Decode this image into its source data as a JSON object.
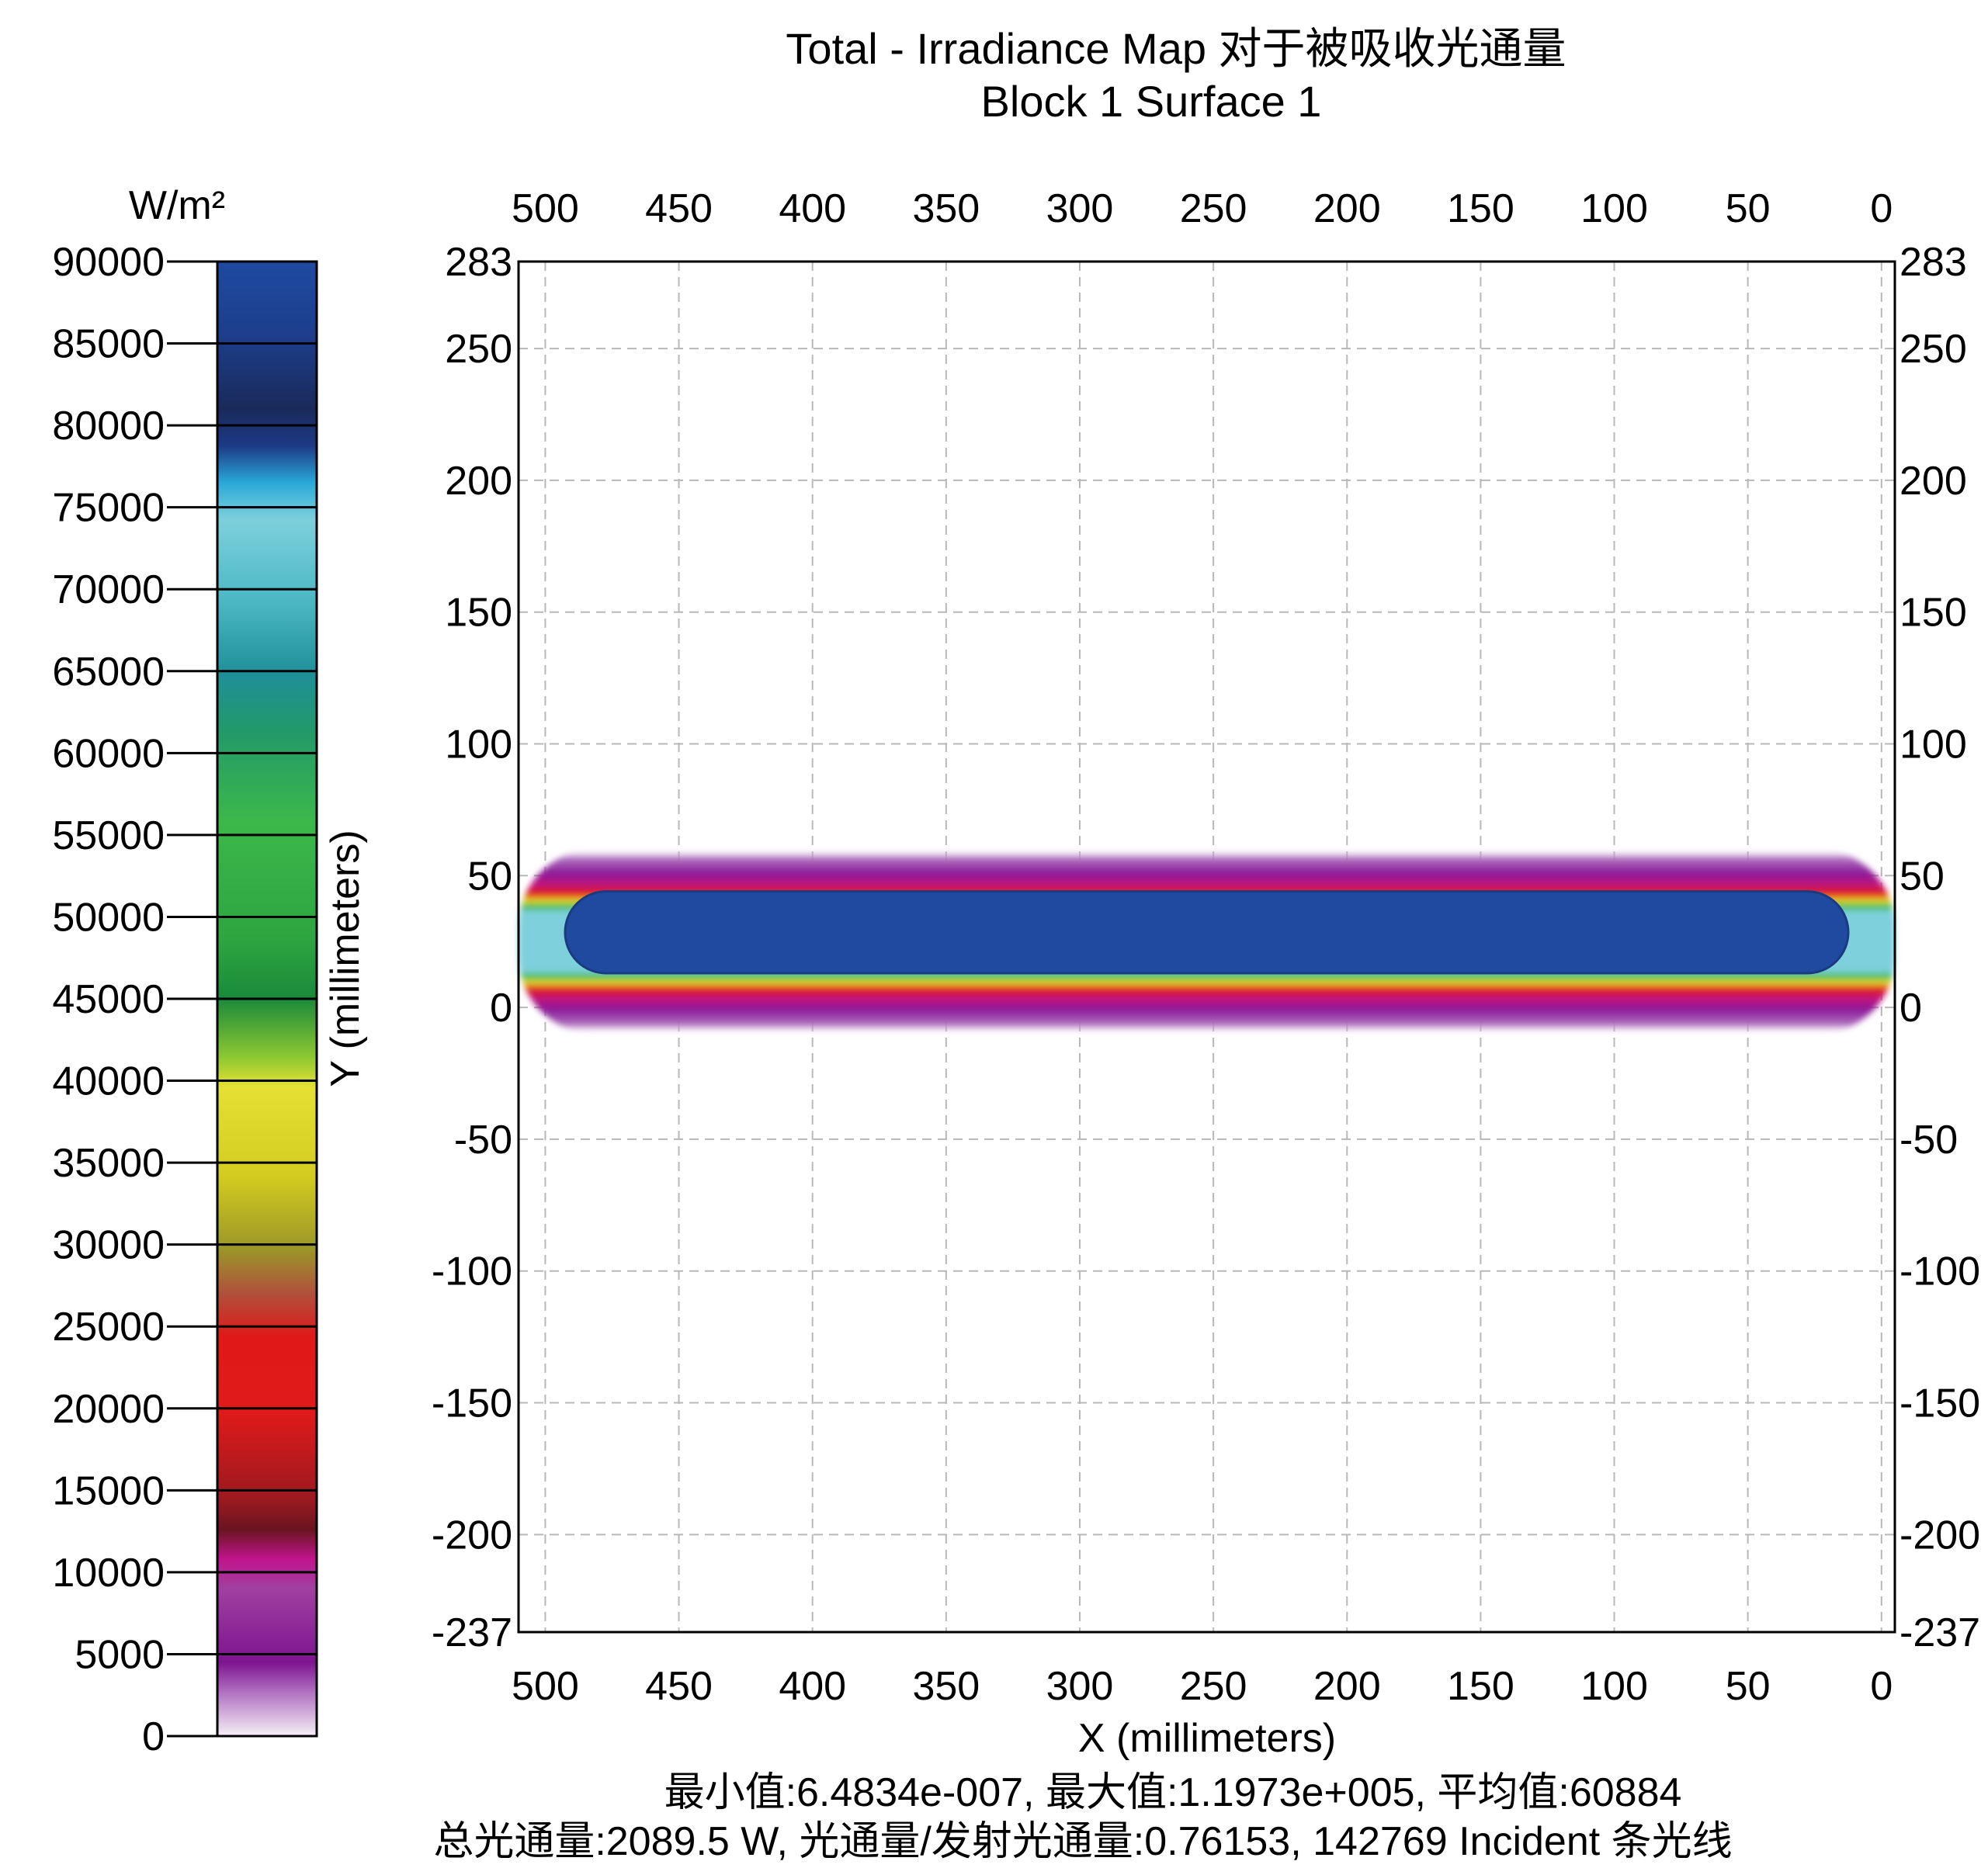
{
  "chart_data": {
    "type": "heatmap",
    "title": "Total - Irradiance Map 对于被吸收光通量",
    "subtitle": "Block 1 Surface 1",
    "xlabel": "X (millimeters)",
    "ylabel": "Y (millimeters)",
    "x_ticks": [
      "500",
      "450",
      "400",
      "350",
      "300",
      "250",
      "200",
      "150",
      "100",
      "50",
      "0"
    ],
    "y_ticks": [
      "283",
      "250",
      "200",
      "150",
      "100",
      "50",
      "0",
      "-50",
      "-100",
      "-150",
      "-200",
      "-237"
    ],
    "xlim": [
      510,
      -5
    ],
    "ylim": [
      -237,
      283
    ],
    "x_reversed": true,
    "grid": true,
    "colorbar": {
      "unit": "W/m²",
      "min": 0,
      "max": 90000,
      "ticks": [
        "90000",
        "85000",
        "80000",
        "75000",
        "70000",
        "65000",
        "60000",
        "55000",
        "50000",
        "45000",
        "40000",
        "35000",
        "30000",
        "25000",
        "20000",
        "15000",
        "10000",
        "5000",
        "0"
      ]
    },
    "illuminated_band": {
      "x_range": [
        510,
        -5
      ],
      "y_range": [
        -10,
        60
      ],
      "core_y_range": [
        13,
        44
      ],
      "core_value": 90000
    },
    "stats_line1": "最小值:6.4834e-007, 最大值:1.1973e+005, 平均值:60884",
    "stats_line2": "总光通量:2089.5 W, 光通量/发射光通量:0.76153, 142769 Incident 条光线"
  }
}
